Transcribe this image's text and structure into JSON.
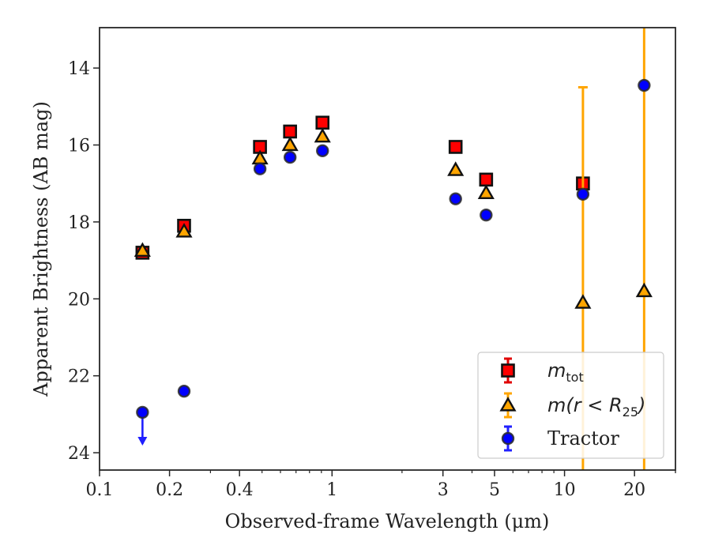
{
  "chart_data": {
    "type": "scatter",
    "title": "",
    "xlabel": "Observed-frame Wavelength (μm)",
    "ylabel": "Apparent Brightness (AB mag)",
    "x_scale": "log",
    "y_inverted": true,
    "xlim": [
      0.1,
      30
    ],
    "ylim": [
      24.45,
      12.95
    ],
    "x_ticks": [
      {
        "value": 0.1,
        "label": "0.1"
      },
      {
        "value": 0.2,
        "label": "0.2"
      },
      {
        "value": 0.4,
        "label": "0.4"
      },
      {
        "value": 1,
        "label": "1"
      },
      {
        "value": 3,
        "label": "3"
      },
      {
        "value": 5,
        "label": "5"
      },
      {
        "value": 10,
        "label": "10"
      },
      {
        "value": 20,
        "label": "20"
      }
    ],
    "y_ticks": [
      {
        "value": 14,
        "label": "14"
      },
      {
        "value": 16,
        "label": "16"
      },
      {
        "value": 18,
        "label": "18"
      },
      {
        "value": 20,
        "label": "20"
      },
      {
        "value": 22,
        "label": "22"
      },
      {
        "value": 24,
        "label": "24"
      }
    ],
    "legend_position": "bottom-right",
    "series": [
      {
        "name_main": "m",
        "name_sub": "tot",
        "marker": "square",
        "color": "#ff0000",
        "errcolor": "#e00000",
        "points": [
          {
            "x": 0.153,
            "y": 18.8
          },
          {
            "x": 0.231,
            "y": 18.1
          },
          {
            "x": 0.49,
            "y": 16.05
          },
          {
            "x": 0.66,
            "y": 15.65
          },
          {
            "x": 0.91,
            "y": 15.42
          },
          {
            "x": 3.4,
            "y": 16.05
          },
          {
            "x": 4.6,
            "y": 16.9
          },
          {
            "x": 12.0,
            "y": 17.0
          }
        ]
      },
      {
        "name_main": "m(r < R",
        "name_sub": "25",
        "name_tail": ")",
        "marker": "triangle",
        "color": "#ffa500",
        "errcolor": "#ffa500",
        "points": [
          {
            "x": 0.153,
            "y": 18.75
          },
          {
            "x": 0.231,
            "y": 18.25
          },
          {
            "x": 0.49,
            "y": 16.35
          },
          {
            "x": 0.66,
            "y": 16.0
          },
          {
            "x": 0.91,
            "y": 15.78
          },
          {
            "x": 3.4,
            "y": 16.65
          },
          {
            "x": 4.6,
            "y": 17.25
          },
          {
            "x": 12.0,
            "y": 20.1,
            "err_up": 5.6,
            "err_down": 6.0
          },
          {
            "x": 22.0,
            "y": 19.8,
            "err_up": 7.0,
            "err_down": 6.0
          }
        ]
      },
      {
        "name_main": "Tractor",
        "marker": "circle",
        "color": "#0000ff",
        "errcolor": "#2020ff",
        "points": [
          {
            "x": 0.153,
            "y": 22.95,
            "upper_limit": true
          },
          {
            "x": 0.231,
            "y": 22.4
          },
          {
            "x": 0.49,
            "y": 16.62
          },
          {
            "x": 0.66,
            "y": 16.32
          },
          {
            "x": 0.91,
            "y": 16.15
          },
          {
            "x": 3.4,
            "y": 17.4
          },
          {
            "x": 4.6,
            "y": 17.82
          },
          {
            "x": 12.0,
            "y": 17.28
          },
          {
            "x": 22.0,
            "y": 14.45
          }
        ]
      }
    ]
  }
}
